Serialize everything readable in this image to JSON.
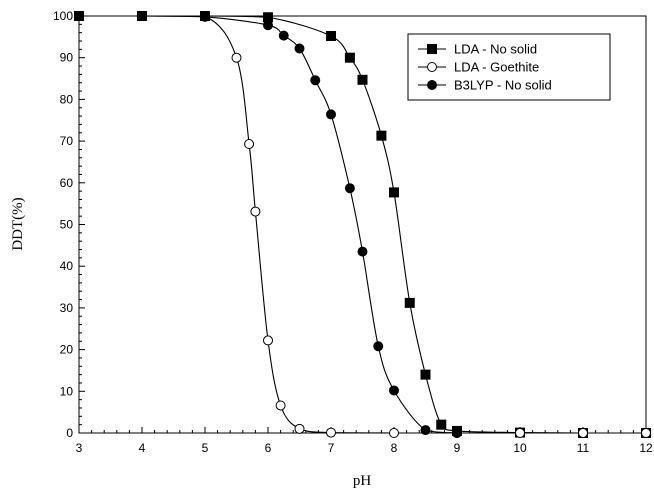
{
  "chart_data": {
    "type": "line",
    "xlabel": "pH",
    "ylabel": "DDT(%)",
    "xlim": [
      3,
      12
    ],
    "ylim": [
      0,
      100
    ],
    "xticks": [
      "3",
      "4",
      "5",
      "6",
      "7",
      "8",
      "9",
      "10",
      "11",
      "12"
    ],
    "yticks": [
      "0",
      "10",
      "20",
      "30",
      "40",
      "50",
      "60",
      "70",
      "80",
      "90",
      "100"
    ],
    "grid": false,
    "legend_position": "top-right",
    "series": [
      {
        "name": "LDA - No solid",
        "marker": "filled-square",
        "color": "#000000",
        "points": [
          [
            3,
            100
          ],
          [
            4,
            100
          ],
          [
            5,
            100
          ],
          [
            6,
            99.7
          ],
          [
            7,
            95.2
          ],
          [
            7.3,
            90
          ],
          [
            7.5,
            84.7
          ],
          [
            7.8,
            71.3
          ],
          [
            8.0,
            57.7
          ],
          [
            8.25,
            31.2
          ],
          [
            8.5,
            14
          ],
          [
            8.75,
            2
          ],
          [
            9,
            0.5
          ],
          [
            10,
            0.1
          ],
          [
            11,
            0
          ],
          [
            12,
            0
          ]
        ]
      },
      {
        "name": "LDA - Goethite",
        "marker": "open-circle",
        "color": "#000000",
        "points": [
          [
            3,
            100
          ],
          [
            4,
            100
          ],
          [
            5,
            99.9
          ],
          [
            5.5,
            90
          ],
          [
            5.7,
            69.3
          ],
          [
            5.8,
            53.1
          ],
          [
            6.0,
            22.2
          ],
          [
            6.2,
            6.6
          ],
          [
            6.5,
            1.0
          ],
          [
            7.0,
            0.1
          ],
          [
            8.0,
            0
          ],
          [
            9.0,
            0
          ],
          [
            10,
            0
          ],
          [
            11,
            0
          ],
          [
            12,
            0
          ]
        ]
      },
      {
        "name": "B3LYP - No solid",
        "marker": "filled-circle",
        "color": "#000000",
        "points": [
          [
            3,
            100
          ],
          [
            4,
            100
          ],
          [
            5,
            99.8
          ],
          [
            6,
            97.8
          ],
          [
            6.25,
            95.3
          ],
          [
            6.5,
            92.2
          ],
          [
            6.75,
            84.6
          ],
          [
            7.0,
            76.4
          ],
          [
            7.3,
            58.7
          ],
          [
            7.5,
            43.5
          ],
          [
            7.75,
            20.8
          ],
          [
            8.0,
            10.2
          ],
          [
            8.5,
            0.7
          ],
          [
            9.0,
            0
          ]
        ]
      }
    ]
  }
}
